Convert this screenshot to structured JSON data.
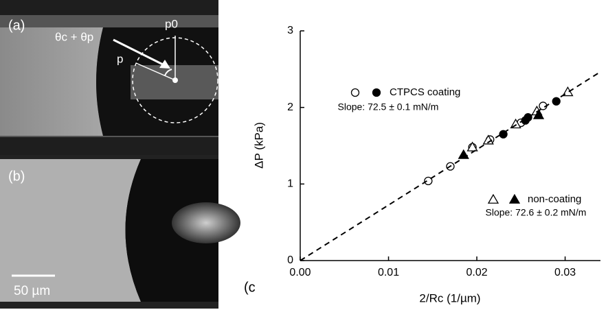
{
  "panels": {
    "a": {
      "label": "(a)",
      "angle": "θc + θp",
      "p": "p",
      "p0": "p0"
    },
    "b": {
      "label": "(b)",
      "scale": "50 µm"
    }
  },
  "chart_data": {
    "type": "scatter",
    "panel_label": "(c",
    "x_label": "2/Rc (1/µm)",
    "y_label": "ΔP (kPa)",
    "xlim": [
      0,
      0.034
    ],
    "ylim": [
      0,
      3
    ],
    "xticks": [
      {
        "value": 0,
        "label": "0.00"
      },
      0.01,
      0.02,
      0.03
    ],
    "yticks": [
      0,
      1,
      2,
      3
    ],
    "series": [
      {
        "marker": "circle",
        "filled": false,
        "color": "#000",
        "x": [
          0.0145,
          0.017,
          0.0195,
          0.0215,
          0.025,
          0.0275
        ],
        "values": [
          1.04,
          1.23,
          1.48,
          1.58,
          1.8,
          2.02
        ]
      },
      {
        "marker": "circle",
        "filled": true,
        "color": "#000",
        "x": [
          0.023,
          0.0255,
          0.0258,
          0.029
        ],
        "values": [
          1.65,
          1.83,
          1.87,
          2.08
        ]
      },
      {
        "marker": "triangle",
        "filled": false,
        "color": "#000",
        "x": [
          0.0195,
          0.0213,
          0.0244,
          0.0268,
          0.0303
        ],
        "values": [
          1.48,
          1.57,
          1.78,
          1.95,
          2.2
        ]
      },
      {
        "marker": "triangle",
        "filled": true,
        "color": "#000",
        "x": [
          0.0185,
          0.027
        ],
        "values": [
          1.38,
          1.9
        ]
      },
      {
        "marker": "dashed-line",
        "color": "#000",
        "x": [
          0,
          0.034
        ],
        "values": [
          0,
          2.465
        ]
      }
    ],
    "legend": [
      {
        "label": "CTPCS coating",
        "note": "Slope: 72.5 ± 0.1 mN/m"
      },
      {
        "label": "non-coating",
        "note": "Slope: 72.6 ± 0.2 mN/m"
      }
    ]
  }
}
